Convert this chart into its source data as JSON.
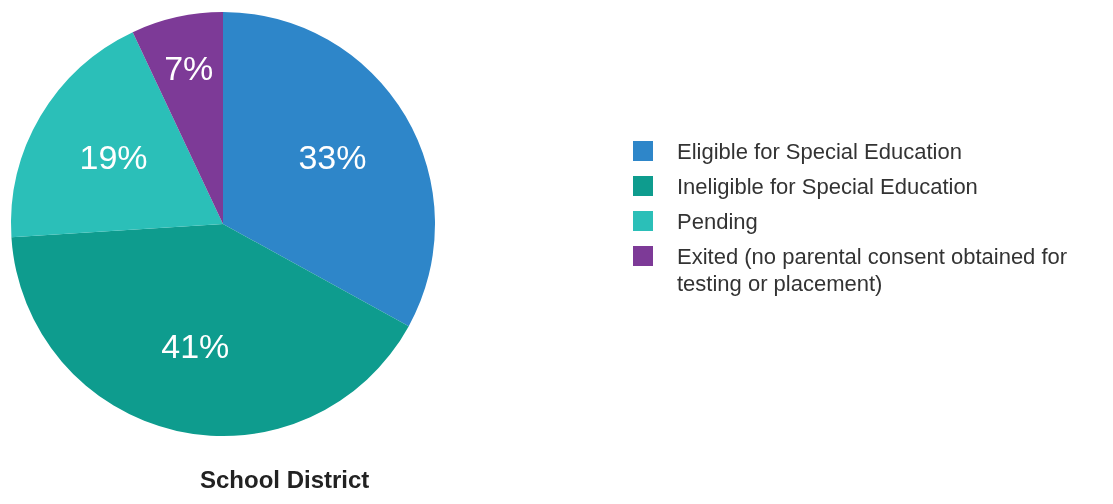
{
  "chart_data": {
    "type": "pie",
    "title": "School District",
    "categories": [
      "Eligible for Special Education",
      "Ineligible for Special Education",
      "Pending",
      "Exited (no parental consent obtained for testing or placement)"
    ],
    "values": [
      33,
      41,
      19,
      7
    ],
    "colors": [
      "#2e86c9",
      "#0e9c8e",
      "#2bbfb8",
      "#7d3a97"
    ],
    "value_labels": [
      "33%",
      "41%",
      "19%",
      "7%"
    ],
    "legend": "right"
  }
}
